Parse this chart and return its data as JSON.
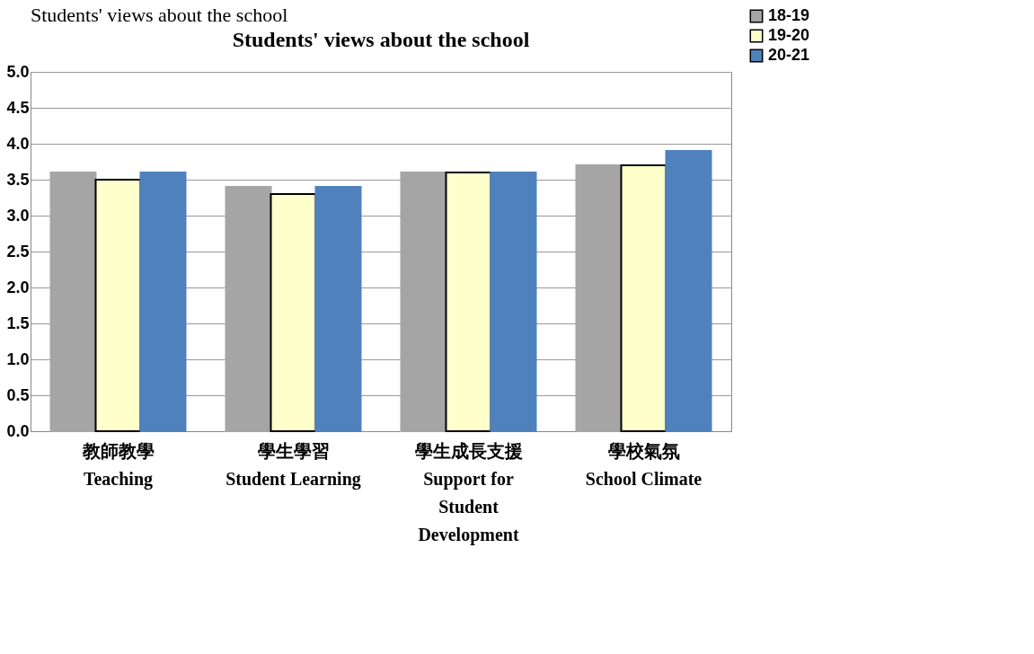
{
  "chart_data": {
    "type": "bar",
    "title": "Students' views about the school",
    "annotations": [
      "Students' views about the school"
    ],
    "categories": [
      "教師教學\nTeaching",
      "學生學習\nStudent Learning",
      "學生成長支援\nSupport for\nStudent\nDevelopment",
      "學校氣氛\nSchool Climate"
    ],
    "series": [
      {
        "name": "18-19",
        "color": "#a5a5a5",
        "values": [
          3.6,
          3.4,
          3.6,
          3.7
        ]
      },
      {
        "name": "19-20",
        "color": "#ffffcc",
        "values": [
          3.5,
          3.3,
          3.6,
          3.7
        ]
      },
      {
        "name": "20-21",
        "color": "#4f81bd",
        "values": [
          3.6,
          3.4,
          3.6,
          3.9
        ]
      }
    ],
    "ylim": [
      0,
      5
    ],
    "yticks": [
      {
        "value": 0,
        "label": "0.0"
      },
      0.5,
      {
        "value": 1,
        "label": "1.0"
      },
      1.5,
      {
        "value": 2,
        "label": "2.0"
      },
      2.5,
      {
        "value": 3,
        "label": "3.0"
      },
      3.5,
      {
        "value": 4,
        "label": "4.0"
      },
      4.5,
      {
        "value": 5,
        "label": "5.0"
      }
    ],
    "grid": "y",
    "legend": "right"
  }
}
